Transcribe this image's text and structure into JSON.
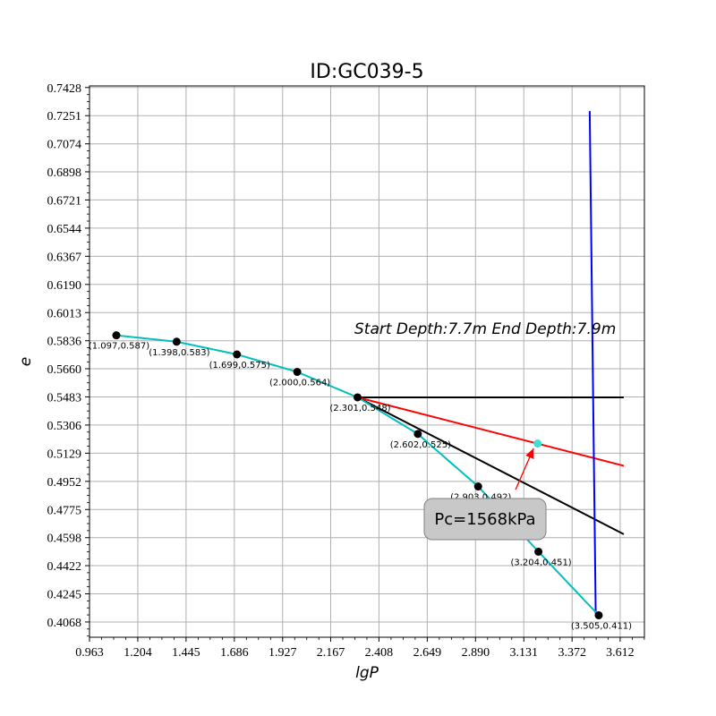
{
  "chart_data": {
    "type": "line",
    "title": "ID:GC039-5",
    "xlabel": "lgP",
    "ylabel": "e",
    "xlim": [
      0.963,
      3.733
    ],
    "ylim": [
      0.3972,
      0.7438
    ],
    "grid": true,
    "x_ticks": [
      "0.963",
      "1.204",
      "1.445",
      "1.686",
      "1.927",
      "2.167",
      "2.408",
      "2.649",
      "2.890",
      "3.131",
      "3.372",
      "3.612"
    ],
    "y_ticks": [
      "0.7428",
      "0.7251",
      "0.7074",
      "0.6898",
      "0.6721",
      "0.6544",
      "0.6367",
      "0.6190",
      "0.6013",
      "0.5836",
      "0.5660",
      "0.5483",
      "0.5306",
      "0.5129",
      "0.4952",
      "0.4775",
      "0.4598",
      "0.4422",
      "0.4245",
      "0.4068"
    ],
    "points": [
      {
        "x": 1.097,
        "y": 0.587,
        "label": "(1.097,0.587)"
      },
      {
        "x": 1.398,
        "y": 0.583,
        "label": "(1.398,0.583)"
      },
      {
        "x": 1.699,
        "y": 0.575,
        "label": "(1.699,0.575)"
      },
      {
        "x": 2.0,
        "y": 0.564,
        "label": "(2.000,0.564)"
      },
      {
        "x": 2.301,
        "y": 0.548,
        "label": "(2.301,0.548)"
      },
      {
        "x": 2.602,
        "y": 0.525,
        "label": "(2.602,0.525)"
      },
      {
        "x": 2.903,
        "y": 0.492,
        "label": "(2.903,0.492)"
      },
      {
        "x": 3.204,
        "y": 0.451,
        "label": "(3.204,0.451)"
      },
      {
        "x": 3.505,
        "y": 0.411,
        "label": "(3.505,0.411)"
      }
    ],
    "curve_color": "#00bfbf",
    "lines": [
      {
        "color": "#000000",
        "x": [
          2.301,
          3.63
        ],
        "y": [
          0.548,
          0.548
        ]
      },
      {
        "color": "#000000",
        "x": [
          2.301,
          3.63
        ],
        "y": [
          0.548,
          0.462
        ]
      },
      {
        "color": "#ff0000",
        "x": [
          2.301,
          3.63
        ],
        "y": [
          0.548,
          0.505
        ]
      },
      {
        "color": "#0000ff",
        "x": [
          3.46,
          3.49
        ],
        "y": [
          0.728,
          0.412
        ]
      }
    ],
    "pc_point": {
      "x": 3.2,
      "y": 0.519,
      "color": "#40e0d0"
    },
    "arrow": {
      "color": "#ff0000",
      "from": [
        3.09,
        0.49
      ],
      "to": [
        3.18,
        0.516
      ]
    },
    "annotation_depth": "Start Depth:7.7m End Depth:7.9m",
    "annotation_pc": "Pc=1568kPa"
  }
}
